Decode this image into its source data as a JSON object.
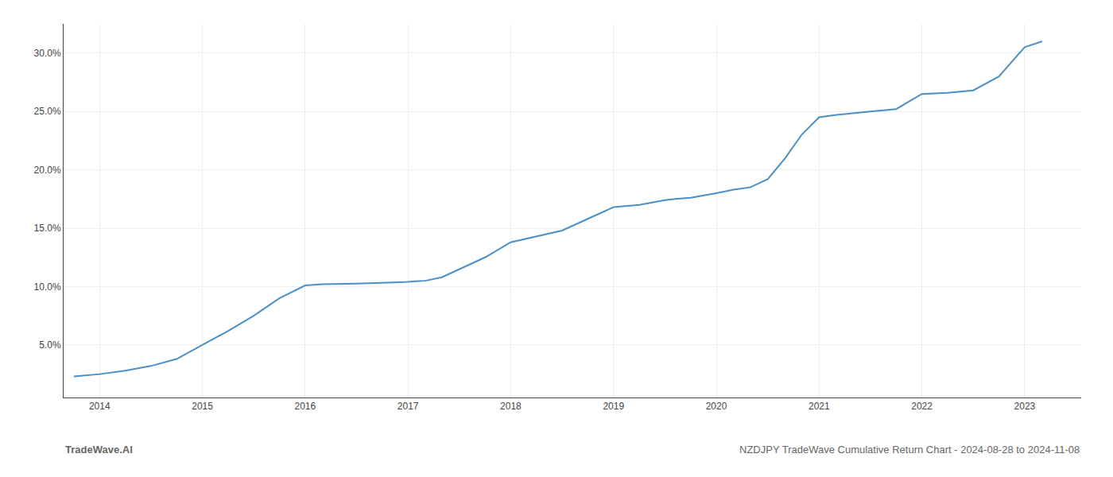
{
  "chart_data": {
    "type": "line",
    "x": [
      2013.75,
      2014.0,
      2014.25,
      2014.5,
      2014.75,
      2015.0,
      2015.25,
      2015.5,
      2015.75,
      2016.0,
      2016.08,
      2016.17,
      2016.5,
      2016.75,
      2017.0,
      2017.08,
      2017.17,
      2017.33,
      2017.5,
      2017.75,
      2018.0,
      2018.25,
      2018.5,
      2018.75,
      2019.0,
      2019.25,
      2019.5,
      2019.6,
      2019.75,
      2020.0,
      2020.17,
      2020.33,
      2020.5,
      2020.67,
      2020.83,
      2021.0,
      2021.08,
      2021.17,
      2021.5,
      2021.75,
      2022.0,
      2022.25,
      2022.5,
      2022.75,
      2023.0,
      2023.17
    ],
    "values": [
      2.3,
      2.5,
      2.8,
      3.2,
      3.8,
      5.0,
      6.2,
      7.5,
      9.0,
      10.1,
      10.15,
      10.2,
      10.25,
      10.3,
      10.4,
      10.45,
      10.5,
      10.8,
      11.5,
      12.5,
      13.8,
      14.3,
      14.8,
      15.8,
      16.8,
      17.0,
      17.4,
      17.5,
      17.6,
      18.0,
      18.3,
      18.5,
      19.2,
      21.0,
      23.0,
      24.5,
      24.6,
      24.7,
      25.0,
      25.2,
      26.5,
      26.6,
      26.8,
      28.0,
      30.5,
      31.0
    ],
    "color": "#4a90c4",
    "xlim": [
      2013.65,
      2023.55
    ],
    "ylim": [
      0.5,
      32.5
    ],
    "xticks": [
      2014,
      2015,
      2016,
      2017,
      2018,
      2019,
      2020,
      2021,
      2022,
      2023
    ],
    "yticks": [
      {
        "value": 5.0,
        "label": "5.0%"
      },
      {
        "value": 10.0,
        "label": "10.0%"
      },
      {
        "value": 15.0,
        "label": "15.0%"
      },
      {
        "value": 20.0,
        "label": "20.0%"
      },
      {
        "value": 25.0,
        "label": "25.0%"
      },
      {
        "value": 30.0,
        "label": "30.0%"
      }
    ],
    "grid": true,
    "annotations": [
      "TradeWave.AI",
      "NZDJPY TradeWave Cumulative Return Chart - 2024-08-28 to 2024-11-08"
    ]
  }
}
